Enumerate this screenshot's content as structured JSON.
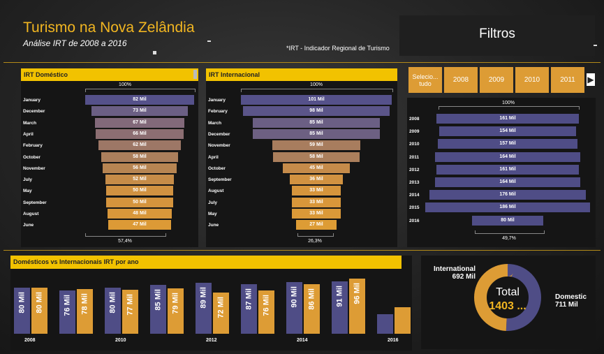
{
  "header": {
    "title": "Turismo na Nova Zelândia",
    "subtitle": "Análise IRT de 2008 a 2016",
    "note": "*IRT - Indicador Regional de Turismo",
    "filters_label": "Filtros"
  },
  "colors": {
    "accent": "#f2c200",
    "domestic": "#4f4d86",
    "international": "#dd9c35"
  },
  "domestic_panel": {
    "title": "IRT Doméstico",
    "top_pct": "100%",
    "bottom_pct": "57,4%",
    "rows": [
      {
        "label": "January",
        "value": 82,
        "text": "82 Mil",
        "color": "#55518a"
      },
      {
        "label": "December",
        "value": 73,
        "text": "73 Mil",
        "color": "#6b5f84"
      },
      {
        "label": "March",
        "value": 67,
        "text": "67 Mil",
        "color": "#82697a"
      },
      {
        "label": "April",
        "value": 66,
        "text": "66 Mil",
        "color": "#8c6e72"
      },
      {
        "label": "February",
        "value": 62,
        "text": "62 Mil",
        "color": "#9d7766"
      },
      {
        "label": "October",
        "value": 58,
        "text": "58 Mil",
        "color": "#ab7f5c"
      },
      {
        "label": "November",
        "value": 56,
        "text": "56 Mil",
        "color": "#b78552"
      },
      {
        "label": "July",
        "value": 52,
        "text": "52 Mil",
        "color": "#c68c48"
      },
      {
        "label": "May",
        "value": 50,
        "text": "50 Mil",
        "color": "#d19241"
      },
      {
        "label": "September",
        "value": 50,
        "text": "50 Mil",
        "color": "#d5943d"
      },
      {
        "label": "August",
        "value": 48,
        "text": "48 Mil",
        "color": "#d9973a"
      },
      {
        "label": "June",
        "value": 47,
        "text": "47 Mil",
        "color": "#dc9a36"
      }
    ]
  },
  "international_panel": {
    "title": "IRT Internacional",
    "top_pct": "100%",
    "bottom_pct": "26,3%",
    "rows": [
      {
        "label": "January",
        "value": 101,
        "text": "101 Mil",
        "color": "#55518a"
      },
      {
        "label": "February",
        "value": 98,
        "text": "98 Mil",
        "color": "#5b5589"
      },
      {
        "label": "March",
        "value": 85,
        "text": "85 Mil",
        "color": "#6b5f84"
      },
      {
        "label": "December",
        "value": 85,
        "text": "85 Mil",
        "color": "#6d6082"
      },
      {
        "label": "November",
        "value": 59,
        "text": "59 Mil",
        "color": "#a87d5e"
      },
      {
        "label": "April",
        "value": 58,
        "text": "58 Mil",
        "color": "#ab7f5c"
      },
      {
        "label": "October",
        "value": 45,
        "text": "45 Mil",
        "color": "#c58b4a"
      },
      {
        "label": "September",
        "value": 36,
        "text": "36 Mil",
        "color": "#d19241"
      },
      {
        "label": "August",
        "value": 33,
        "text": "33 Mil",
        "color": "#d6953c"
      },
      {
        "label": "July",
        "value": 33,
        "text": "33 Mil",
        "color": "#d9973a"
      },
      {
        "label": "May",
        "value": 33,
        "text": "33 Mil",
        "color": "#db9938"
      },
      {
        "label": "June",
        "value": 27,
        "text": "27 Mil",
        "color": "#dd9c35"
      }
    ]
  },
  "year_panel": {
    "slicer": [
      "Selecio... tudo",
      "2008",
      "2009",
      "2010",
      "2011"
    ],
    "top_pct": "100%",
    "bottom_pct": "49,7%",
    "rows": [
      {
        "label": "2008",
        "value": 161,
        "text": "161 Mil"
      },
      {
        "label": "2009",
        "value": 154,
        "text": "154 Mil"
      },
      {
        "label": "2010",
        "value": 157,
        "text": "157 Mil"
      },
      {
        "label": "2011",
        "value": 164,
        "text": "164 Mil"
      },
      {
        "label": "2012",
        "value": 161,
        "text": "161 Mil"
      },
      {
        "label": "2013",
        "value": 164,
        "text": "164 Mil"
      },
      {
        "label": "2014",
        "value": 176,
        "text": "176 Mil"
      },
      {
        "label": "2015",
        "value": 186,
        "text": "186 Mil"
      },
      {
        "label": "2016",
        "value": 80,
        "text": "80 Mil"
      }
    ]
  },
  "bar_chart": {
    "title": "Domésticos vs Internacionais IRT por ano",
    "x_ticks": [
      "2008",
      "2010",
      "2012",
      "2014",
      "2016"
    ]
  },
  "chart_data": [
    {
      "type": "bar",
      "title": "Domésticos vs Internacionais IRT por ano",
      "categories": [
        "2008",
        "2009",
        "2010",
        "2011",
        "2012",
        "2013",
        "2014",
        "2015",
        "2016"
      ],
      "series": [
        {
          "values": [
            80,
            76,
            80,
            85,
            89,
            87,
            90,
            91,
            34
          ],
          "labels": [
            "80 Mil",
            "76 Mil",
            "80 Mil",
            "85 Mil",
            "89 Mil",
            "87 Mil",
            "90 Mil",
            "91 Mil",
            ""
          ]
        },
        {
          "values": [
            80,
            78,
            77,
            79,
            72,
            76,
            86,
            96,
            46
          ],
          "labels": [
            "80 Mil",
            "78 Mil",
            "77 Mil",
            "79 Mil",
            "72 Mil",
            "76 Mil",
            "86 Mil",
            "96 Mil",
            ""
          ]
        }
      ]
    },
    {
      "type": "pie",
      "slices": [
        {
          "name": "International",
          "value": 692,
          "text": "692 Mil"
        },
        {
          "name": "Domestic",
          "value": 711,
          "text": "711 Mil"
        }
      ],
      "center_label": "Total",
      "center_value": "1403 ..."
    }
  ]
}
